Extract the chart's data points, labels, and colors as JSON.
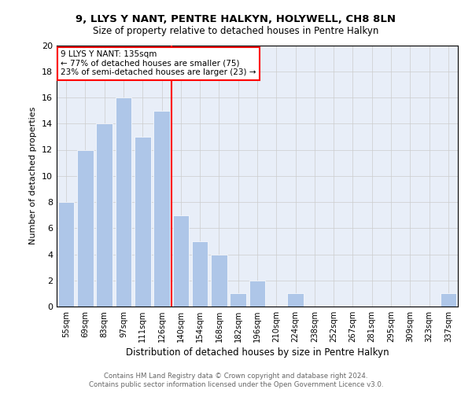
{
  "title1": "9, LLYS Y NANT, PENTRE HALKYN, HOLYWELL, CH8 8LN",
  "title2": "Size of property relative to detached houses in Pentre Halkyn",
  "xlabel": "Distribution of detached houses by size in Pentre Halkyn",
  "ylabel": "Number of detached properties",
  "categories": [
    "55sqm",
    "69sqm",
    "83sqm",
    "97sqm",
    "111sqm",
    "126sqm",
    "140sqm",
    "154sqm",
    "168sqm",
    "182sqm",
    "196sqm",
    "210sqm",
    "224sqm",
    "238sqm",
    "252sqm",
    "267sqm",
    "281sqm",
    "295sqm",
    "309sqm",
    "323sqm",
    "337sqm"
  ],
  "values": [
    8,
    12,
    14,
    16,
    13,
    15,
    7,
    5,
    4,
    1,
    2,
    0,
    1,
    0,
    0,
    0,
    0,
    0,
    0,
    0,
    1
  ],
  "bar_color": "#aec6e8",
  "vline_color": "red",
  "vline_x": 6,
  "annotation_text": "9 LLYS Y NANT: 135sqm\n← 77% of detached houses are smaller (75)\n23% of semi-detached houses are larger (23) →",
  "annotation_box_edgecolor": "red",
  "ylim": [
    0,
    20
  ],
  "yticks": [
    0,
    2,
    4,
    6,
    8,
    10,
    12,
    14,
    16,
    18,
    20
  ],
  "grid_color": "#cccccc",
  "footer": "Contains HM Land Registry data © Crown copyright and database right 2024.\nContains public sector information licensed under the Open Government Licence v3.0.",
  "bg_color": "#e8eef8"
}
